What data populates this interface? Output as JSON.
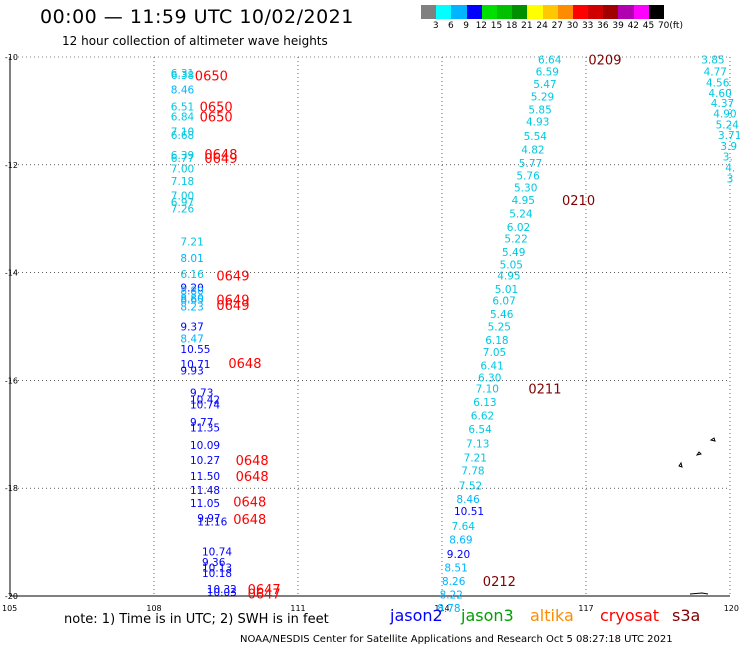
{
  "header": {
    "title": "00:00 — 11:59 UTC 10/02/2021",
    "subtitle": "12 hour collection of altimeter wave heights"
  },
  "legend": {
    "unit": "(ft)",
    "colors": [
      "#808080",
      "#00ffff",
      "#00b4ff",
      "#0000ff",
      "#00e000",
      "#00c000",
      "#009000",
      "#ffff00",
      "#ffc800",
      "#ff8c00",
      "#ff0000",
      "#d00000",
      "#a00000",
      "#b000b0",
      "#ff00ff",
      "#000000"
    ],
    "labels": [
      "3",
      "6",
      "9",
      "12",
      "15",
      "18",
      "21",
      "24",
      "27",
      "30",
      "33",
      "36",
      "39",
      "42",
      "45",
      "70"
    ]
  },
  "map": {
    "lon_min": 105,
    "lon_max": 120,
    "lat_min": -20,
    "lat_max": -10,
    "lon_ticks": [
      "105",
      "108",
      "111",
      "114",
      "117",
      "120"
    ],
    "lat_ticks": [
      "-10",
      "-12",
      "-14",
      "-16",
      "-18",
      "-20"
    ],
    "grid_color": "#000000",
    "time_color_red": "#ff0000",
    "time_color_dark": "#800000",
    "points": [
      {
        "lon": 108.35,
        "lat": -10.33,
        "t": "6.38",
        "c": "#00c8e0"
      },
      {
        "lon": 108.35,
        "lat": -10.3,
        "t": "6.31",
        "c": "#00c8e0"
      },
      {
        "lon": 108.35,
        "lat": -10.6,
        "t": "8.46",
        "c": "#00b4ff"
      },
      {
        "lon": 108.35,
        "lat": -10.92,
        "t": "6.51",
        "c": "#00c8e0"
      },
      {
        "lon": 108.35,
        "lat": -11.1,
        "t": "6.84",
        "c": "#00c8e0"
      },
      {
        "lon": 108.35,
        "lat": -11.38,
        "t": "7.10",
        "c": "#00c8e0"
      },
      {
        "lon": 108.35,
        "lat": -11.45,
        "t": "6.68",
        "c": "#00c8e0"
      },
      {
        "lon": 108.35,
        "lat": -11.82,
        "t": "6.39",
        "c": "#00c8e0"
      },
      {
        "lon": 108.35,
        "lat": -11.87,
        "t": "6.77",
        "c": "#00c8e0"
      },
      {
        "lon": 108.35,
        "lat": -12.07,
        "t": "7.00",
        "c": "#00c8e0"
      },
      {
        "lon": 108.35,
        "lat": -12.3,
        "t": "7.18",
        "c": "#00c8e0"
      },
      {
        "lon": 108.35,
        "lat": -12.57,
        "t": "7.00",
        "c": "#00c8e0"
      },
      {
        "lon": 108.35,
        "lat": -12.69,
        "t": "6.97",
        "c": "#00c8e0"
      },
      {
        "lon": 108.35,
        "lat": -12.81,
        "t": "7.26",
        "c": "#00c8e0"
      },
      {
        "lon": 108.55,
        "lat": -13.42,
        "t": "7.21",
        "c": "#00c8e0"
      },
      {
        "lon": 108.55,
        "lat": -13.73,
        "t": "8.01",
        "c": "#00b4ff"
      },
      {
        "lon": 108.55,
        "lat": -14.03,
        "t": "6.16",
        "c": "#00c8e0"
      },
      {
        "lon": 108.55,
        "lat": -14.28,
        "t": "9.20",
        "c": "#0000ff"
      },
      {
        "lon": 108.55,
        "lat": -14.33,
        "t": "8.80",
        "c": "#00b4ff"
      },
      {
        "lon": 108.55,
        "lat": -14.47,
        "t": "8.80",
        "c": "#00b4ff"
      },
      {
        "lon": 108.55,
        "lat": -14.5,
        "t": "8.65",
        "c": "#00b4ff"
      },
      {
        "lon": 108.55,
        "lat": -14.63,
        "t": "8.23",
        "c": "#00b4ff"
      },
      {
        "lon": 108.55,
        "lat": -15.0,
        "t": "9.37",
        "c": "#0000ff"
      },
      {
        "lon": 108.55,
        "lat": -15.22,
        "t": "8.47",
        "c": "#00b4ff"
      },
      {
        "lon": 108.55,
        "lat": -15.42,
        "t": "10.55",
        "c": "#0000ff"
      },
      {
        "lon": 108.55,
        "lat": -15.7,
        "t": "10.71",
        "c": "#0000ff"
      },
      {
        "lon": 108.55,
        "lat": -15.82,
        "t": "9.93",
        "c": "#0000ff"
      },
      {
        "lon": 108.75,
        "lat": -16.22,
        "t": "9.73",
        "c": "#0000ff"
      },
      {
        "lon": 108.75,
        "lat": -16.35,
        "t": "10.42",
        "c": "#0000ff"
      },
      {
        "lon": 108.75,
        "lat": -16.45,
        "t": "10.74",
        "c": "#0000ff"
      },
      {
        "lon": 108.75,
        "lat": -16.77,
        "t": "9.77",
        "c": "#0000ff"
      },
      {
        "lon": 108.75,
        "lat": -16.87,
        "t": "11.35",
        "c": "#0000ff"
      },
      {
        "lon": 108.75,
        "lat": -17.2,
        "t": "10.09",
        "c": "#0000ff"
      },
      {
        "lon": 108.75,
        "lat": -17.48,
        "t": "10.27",
        "c": "#0000ff"
      },
      {
        "lon": 108.75,
        "lat": -17.77,
        "t": "11.50",
        "c": "#0000ff"
      },
      {
        "lon": 108.75,
        "lat": -18.03,
        "t": "11.48",
        "c": "#0000ff"
      },
      {
        "lon": 108.75,
        "lat": -18.27,
        "t": "11.05",
        "c": "#0000ff"
      },
      {
        "lon": 108.9,
        "lat": -18.55,
        "t": "9.97",
        "c": "#0000ff"
      },
      {
        "lon": 108.9,
        "lat": -18.62,
        "t": "11.16",
        "c": "#0000ff"
      },
      {
        "lon": 109.0,
        "lat": -19.17,
        "t": "10.74",
        "c": "#0000ff"
      },
      {
        "lon": 109.0,
        "lat": -19.37,
        "t": "9.36",
        "c": "#0000ff"
      },
      {
        "lon": 109.0,
        "lat": -19.47,
        "t": "10.13",
        "c": "#0000ff"
      },
      {
        "lon": 109.0,
        "lat": -19.57,
        "t": "10.18",
        "c": "#0000ff"
      },
      {
        "lon": 109.1,
        "lat": -19.87,
        "t": "10.32",
        "c": "#0000ff"
      },
      {
        "lon": 109.1,
        "lat": -19.93,
        "t": "10.03",
        "c": "#0000ff"
      },
      {
        "lon": 116.0,
        "lat": -10.05,
        "t": "6.64",
        "c": "#00c8e0"
      },
      {
        "lon": 115.95,
        "lat": -10.27,
        "t": "6.59",
        "c": "#00c8e0"
      },
      {
        "lon": 115.9,
        "lat": -10.5,
        "t": "5.47",
        "c": "#00c8e0"
      },
      {
        "lon": 115.85,
        "lat": -10.73,
        "t": "5.29",
        "c": "#00c8e0"
      },
      {
        "lon": 115.8,
        "lat": -10.97,
        "t": "5.85",
        "c": "#00c8e0"
      },
      {
        "lon": 115.75,
        "lat": -11.2,
        "t": "4.93",
        "c": "#00c8e0"
      },
      {
        "lon": 115.7,
        "lat": -11.47,
        "t": "5.54",
        "c": "#00c8e0"
      },
      {
        "lon": 115.65,
        "lat": -11.72,
        "t": "4.82",
        "c": "#00c8e0"
      },
      {
        "lon": 115.6,
        "lat": -11.97,
        "t": "5.77",
        "c": "#00c8e0"
      },
      {
        "lon": 115.55,
        "lat": -12.2,
        "t": "5.76",
        "c": "#00c8e0"
      },
      {
        "lon": 115.5,
        "lat": -12.42,
        "t": "5.30",
        "c": "#00c8e0"
      },
      {
        "lon": 115.45,
        "lat": -12.65,
        "t": "4.95",
        "c": "#00c8e0"
      },
      {
        "lon": 115.4,
        "lat": -12.9,
        "t": "5.24",
        "c": "#00c8e0"
      },
      {
        "lon": 115.35,
        "lat": -13.15,
        "t": "6.02",
        "c": "#00c8e0"
      },
      {
        "lon": 115.3,
        "lat": -13.37,
        "t": "5.22",
        "c": "#00c8e0"
      },
      {
        "lon": 115.25,
        "lat": -13.62,
        "t": "5.49",
        "c": "#00c8e0"
      },
      {
        "lon": 115.2,
        "lat": -13.85,
        "t": "5.05",
        "c": "#00c8e0"
      },
      {
        "lon": 115.15,
        "lat": -14.05,
        "t": "4.95",
        "c": "#00c8e0"
      },
      {
        "lon": 115.1,
        "lat": -14.3,
        "t": "5.01",
        "c": "#00c8e0"
      },
      {
        "lon": 115.05,
        "lat": -14.52,
        "t": "6.07",
        "c": "#00c8e0"
      },
      {
        "lon": 115.0,
        "lat": -14.77,
        "t": "5.46",
        "c": "#00c8e0"
      },
      {
        "lon": 114.95,
        "lat": -15.0,
        "t": "5.25",
        "c": "#00c8e0"
      },
      {
        "lon": 114.9,
        "lat": -15.25,
        "t": "6.18",
        "c": "#00c8e0"
      },
      {
        "lon": 114.85,
        "lat": -15.47,
        "t": "7.05",
        "c": "#00c8e0"
      },
      {
        "lon": 114.8,
        "lat": -15.72,
        "t": "6.41",
        "c": "#00c8e0"
      },
      {
        "lon": 114.75,
        "lat": -15.95,
        "t": "6.30",
        "c": "#00c8e0"
      },
      {
        "lon": 114.7,
        "lat": -16.15,
        "t": "7.10",
        "c": "#00c8e0"
      },
      {
        "lon": 114.65,
        "lat": -16.4,
        "t": "6.13",
        "c": "#00c8e0"
      },
      {
        "lon": 114.6,
        "lat": -16.65,
        "t": "6.62",
        "c": "#00c8e0"
      },
      {
        "lon": 114.55,
        "lat": -16.9,
        "t": "6.54",
        "c": "#00c8e0"
      },
      {
        "lon": 114.5,
        "lat": -17.17,
        "t": "7.13",
        "c": "#00c8e0"
      },
      {
        "lon": 114.45,
        "lat": -17.43,
        "t": "7.21",
        "c": "#00c8e0"
      },
      {
        "lon": 114.4,
        "lat": -17.67,
        "t": "7.78",
        "c": "#00c8e0"
      },
      {
        "lon": 114.35,
        "lat": -17.95,
        "t": "7.52",
        "c": "#00c8e0"
      },
      {
        "lon": 114.3,
        "lat": -18.2,
        "t": "8.46",
        "c": "#00b4ff"
      },
      {
        "lon": 114.25,
        "lat": -18.42,
        "t": "10.51",
        "c": "#0000ff"
      },
      {
        "lon": 114.2,
        "lat": -18.7,
        "t": "7.64",
        "c": "#00c8e0"
      },
      {
        "lon": 114.15,
        "lat": -18.95,
        "t": "8.69",
        "c": "#00b4ff"
      },
      {
        "lon": 114.1,
        "lat": -19.22,
        "t": "9.20",
        "c": "#0000ff"
      },
      {
        "lon": 114.05,
        "lat": -19.47,
        "t": "8.51",
        "c": "#00b4ff"
      },
      {
        "lon": 114.0,
        "lat": -19.72,
        "t": "8.26",
        "c": "#00b4ff"
      },
      {
        "lon": 113.95,
        "lat": -19.97,
        "t": "8.22",
        "c": "#00b4ff"
      },
      {
        "lon": 113.9,
        "lat": -20.22,
        "t": "8.78",
        "c": "#00b4ff"
      },
      {
        "lon": 119.4,
        "lat": -10.05,
        "t": "3.85",
        "c": "#00c8e0"
      },
      {
        "lon": 119.45,
        "lat": -10.27,
        "t": "4.77",
        "c": "#00c8e0"
      },
      {
        "lon": 119.5,
        "lat": -10.47,
        "t": "4.56",
        "c": "#00c8e0"
      },
      {
        "lon": 119.55,
        "lat": -10.67,
        "t": "4.60",
        "c": "#00c8e0"
      },
      {
        "lon": 119.6,
        "lat": -10.85,
        "t": "4.37",
        "c": "#00c8e0"
      },
      {
        "lon": 119.65,
        "lat": -11.05,
        "t": "4.90",
        "c": "#00c8e0"
      },
      {
        "lon": 119.7,
        "lat": -11.25,
        "t": "5.24",
        "c": "#00c8e0"
      },
      {
        "lon": 119.75,
        "lat": -11.45,
        "t": "3.71",
        "c": "#00c8e0"
      },
      {
        "lon": 119.8,
        "lat": -11.65,
        "t": "3.9",
        "c": "#00c8e0"
      },
      {
        "lon": 119.85,
        "lat": -11.85,
        "t": "3.",
        "c": "#00c8e0"
      },
      {
        "lon": 119.9,
        "lat": -12.05,
        "t": "4.",
        "c": "#00c8e0"
      },
      {
        "lon": 119.93,
        "lat": -12.25,
        "t": "3",
        "c": "#00c8e0"
      }
    ],
    "times": [
      {
        "lon": 108.85,
        "lat": -10.34,
        "t": "0650",
        "c": "#ff0000"
      },
      {
        "lon": 108.95,
        "lat": -10.92,
        "t": "0650",
        "c": "#ff0000"
      },
      {
        "lon": 108.95,
        "lat": -11.1,
        "t": "0650",
        "c": "#ff0000"
      },
      {
        "lon": 109.05,
        "lat": -11.8,
        "t": "0648",
        "c": "#ff0000"
      },
      {
        "lon": 109.05,
        "lat": -11.87,
        "t": "0649",
        "c": "#ff0000"
      },
      {
        "lon": 109.3,
        "lat": -14.05,
        "t": "0649",
        "c": "#ff0000"
      },
      {
        "lon": 109.3,
        "lat": -14.5,
        "t": "0649",
        "c": "#ff0000"
      },
      {
        "lon": 109.3,
        "lat": -14.6,
        "t": "0649",
        "c": "#ff0000"
      },
      {
        "lon": 109.55,
        "lat": -15.68,
        "t": "0648",
        "c": "#ff0000"
      },
      {
        "lon": 109.7,
        "lat": -17.48,
        "t": "0648",
        "c": "#ff0000"
      },
      {
        "lon": 109.7,
        "lat": -17.77,
        "t": "0648",
        "c": "#ff0000"
      },
      {
        "lon": 109.65,
        "lat": -18.25,
        "t": "0648",
        "c": "#ff0000"
      },
      {
        "lon": 109.65,
        "lat": -18.57,
        "t": "0648",
        "c": "#ff0000"
      },
      {
        "lon": 109.95,
        "lat": -19.87,
        "t": "0647",
        "c": "#ff0000"
      },
      {
        "lon": 109.95,
        "lat": -19.95,
        "t": "0647",
        "c": "#ff0000"
      },
      {
        "lon": 117.05,
        "lat": -10.05,
        "t": "0209",
        "c": "#800000"
      },
      {
        "lon": 116.5,
        "lat": -12.65,
        "t": "0210",
        "c": "#800000"
      },
      {
        "lon": 115.8,
        "lat": -16.15,
        "t": "0211",
        "c": "#800000"
      },
      {
        "lon": 114.85,
        "lat": -19.72,
        "t": "0212",
        "c": "#800000"
      }
    ]
  },
  "footer": {
    "note": "note: 1) Time is in UTC; 2) SWH is in feet",
    "satellites": [
      {
        "name": "jason2",
        "color": "#0000ff"
      },
      {
        "name": "jason3",
        "color": "#00a000"
      },
      {
        "name": "altika",
        "color": "#ff8c00"
      },
      {
        "name": "cryosat",
        "color": "#ff0000"
      },
      {
        "name": "s3a",
        "color": "#800000"
      }
    ],
    "credit": "NOAA/NESDIS Center for Satellite Applications and Research    Oct  5 08:27:18 UTC 2021"
  }
}
